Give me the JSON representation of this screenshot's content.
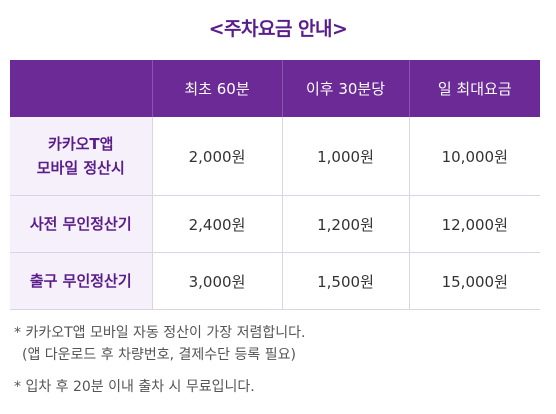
{
  "title": "<주차요금 안내>",
  "table": {
    "headers": [
      "",
      "최초 60분",
      "이후 30분당",
      "일 최대요금"
    ],
    "rows": [
      {
        "label_line1": "카카오T앱",
        "label_line2": "모바일 정산시",
        "values": [
          "2,000원",
          "1,000원",
          "10,000원"
        ]
      },
      {
        "label": "사전 무인정산기",
        "values": [
          "2,400원",
          "1,200원",
          "12,000원"
        ]
      },
      {
        "label": "출구 무인정산기",
        "values": [
          "3,000원",
          "1,500원",
          "15,000원"
        ]
      }
    ]
  },
  "notes": {
    "note1_line1": "* 카카오T앱 모바일 자동 정산이 가장 저렴합니다.",
    "note1_line2": "(앱 다운로드 후 차량번호, 결제수단 등록 필요)",
    "note2": "* 입차 후 20분 이내 출차 시 무료입니다."
  },
  "colors": {
    "header_bg": "#6b2a96",
    "label_bg": "#f6f0fa",
    "accent": "#5a1e8c"
  }
}
